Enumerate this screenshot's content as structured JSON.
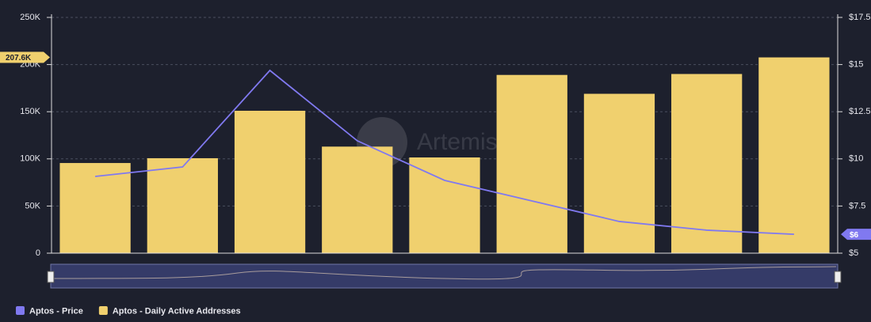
{
  "chart_data": {
    "type": "bar",
    "watermark": "Artemis",
    "categories": [
      null,
      null,
      null,
      null,
      null,
      null,
      null,
      null,
      null
    ],
    "series": [
      {
        "name": "Aptos - Price",
        "type": "line",
        "axis": "y2",
        "color": "#8079f0",
        "values": [
          9.07,
          9.57,
          14.69,
          10.96,
          8.86,
          7.77,
          6.68,
          6.22,
          6
        ],
        "value_labels": [
          null,
          null,
          null,
          null,
          null,
          null,
          null,
          null,
          "$6"
        ]
      },
      {
        "name": "Aptos - Daily Active Addresses",
        "type": "bar",
        "color": "#f0d06e",
        "values": [
          95600,
          100700,
          151000,
          113000,
          101500,
          189000,
          169000,
          190000,
          207600
        ],
        "value_labels": [
          null,
          null,
          null,
          null,
          null,
          null,
          null,
          null,
          "207.6K"
        ]
      }
    ],
    "ylim": [
      0,
      250000
    ],
    "yticks": [
      0,
      {
        "value": 50000,
        "label": "50K"
      },
      {
        "value": 100000,
        "label": "100K"
      },
      {
        "value": 150000,
        "label": "150K"
      },
      {
        "value": 200000,
        "label": "200K"
      },
      {
        "value": 250000,
        "label": "250K"
      }
    ],
    "y2lim": [
      5,
      17.5
    ],
    "y2ticks": [
      {
        "value": 5,
        "label": "$5"
      },
      {
        "value": 7.5,
        "label": "$7.5"
      },
      {
        "value": 10,
        "label": "$10"
      },
      {
        "value": 12.5,
        "label": "$12.5"
      },
      {
        "value": 15,
        "label": "$15"
      },
      {
        "value": 17.5,
        "label": "$17.5"
      }
    ],
    "grid": true,
    "legend": "bottom-left"
  }
}
